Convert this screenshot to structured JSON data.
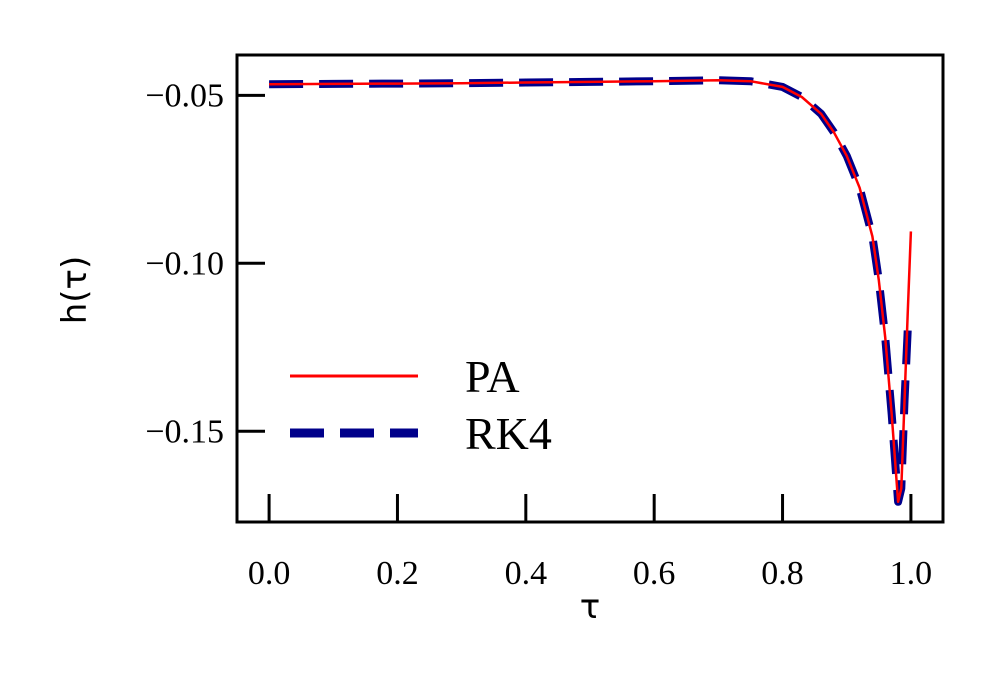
{
  "chart_data": {
    "type": "line",
    "xlabel": "τ",
    "ylabel": "h(τ)",
    "xlim": [
      -0.05,
      1.05
    ],
    "ylim": [
      -0.177,
      -0.038
    ],
    "x_ticks": [
      0.0,
      0.2,
      0.4,
      0.6,
      0.8,
      1.0
    ],
    "x_tick_labels": [
      "0.0",
      "0.2",
      "0.4",
      "0.6",
      "0.8",
      "1.0"
    ],
    "y_ticks": [
      -0.05,
      -0.1,
      -0.15
    ],
    "y_tick_labels": [
      "−0.05",
      "−0.10",
      "−0.15"
    ],
    "grid": false,
    "legend": {
      "position": "lower-left"
    },
    "series": [
      {
        "name": "PA",
        "color": "#ff0000",
        "style": "solid",
        "x": [
          0.0,
          0.1,
          0.2,
          0.3,
          0.4,
          0.5,
          0.6,
          0.7,
          0.75,
          0.8,
          0.83,
          0.86,
          0.88,
          0.9,
          0.92,
          0.94,
          0.95,
          0.96,
          0.97,
          0.975,
          0.98,
          0.985,
          0.99,
          0.995,
          1.0
        ],
        "y": [
          -0.0467,
          -0.0466,
          -0.0465,
          -0.0464,
          -0.0462,
          -0.046,
          -0.0458,
          -0.0455,
          -0.0458,
          -0.0475,
          -0.0505,
          -0.0555,
          -0.061,
          -0.068,
          -0.0775,
          -0.092,
          -0.105,
          -0.122,
          -0.145,
          -0.158,
          -0.171,
          -0.167,
          -0.141,
          -0.115,
          -0.0905
        ]
      },
      {
        "name": "RK4",
        "color": "#00008b",
        "style": "dashed",
        "x": [
          0.0,
          0.1,
          0.2,
          0.3,
          0.4,
          0.5,
          0.6,
          0.7,
          0.75,
          0.8,
          0.83,
          0.86,
          0.88,
          0.9,
          0.92,
          0.94,
          0.95,
          0.96,
          0.97,
          0.975,
          0.98,
          0.985,
          0.99,
          0.995
        ],
        "y": [
          -0.0467,
          -0.0466,
          -0.0465,
          -0.0464,
          -0.0462,
          -0.046,
          -0.0458,
          -0.0455,
          -0.0458,
          -0.0475,
          -0.0505,
          -0.0555,
          -0.061,
          -0.068,
          -0.0775,
          -0.092,
          -0.105,
          -0.122,
          -0.145,
          -0.158,
          -0.171,
          -0.167,
          -0.141,
          -0.12
        ]
      }
    ]
  }
}
